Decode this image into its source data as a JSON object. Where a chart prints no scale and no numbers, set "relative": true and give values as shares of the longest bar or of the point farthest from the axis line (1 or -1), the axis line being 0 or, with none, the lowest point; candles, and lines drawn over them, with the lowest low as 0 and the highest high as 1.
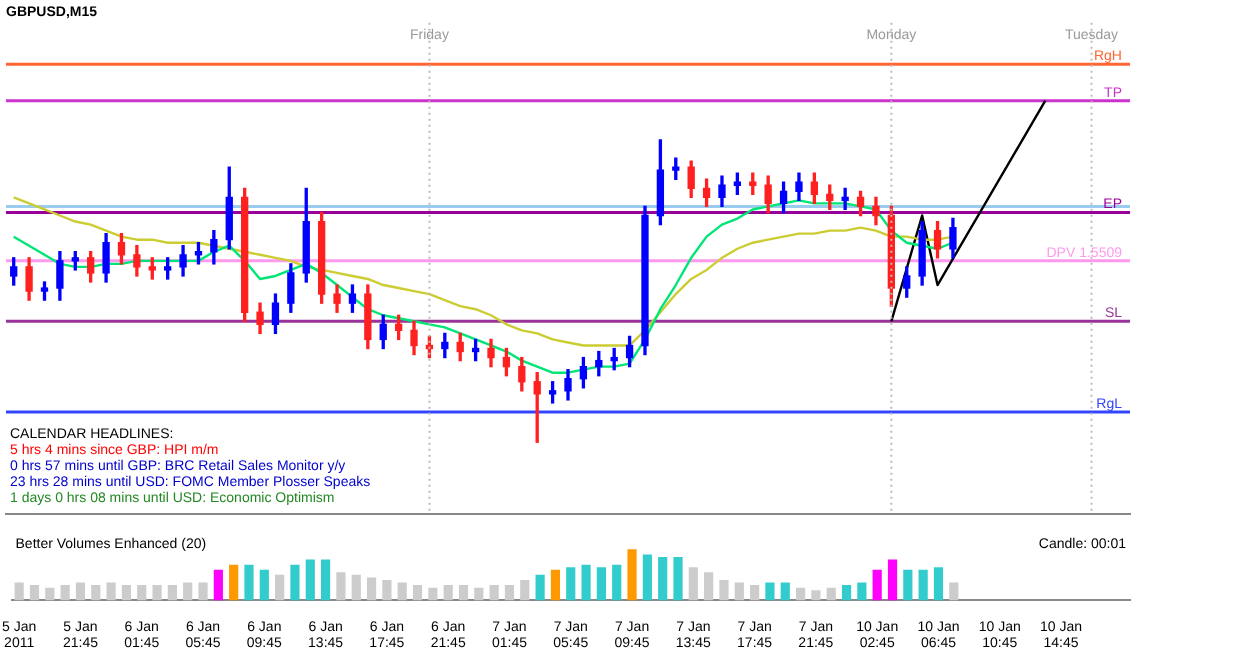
{
  "chart_data": [
    {
      "type": "candlestick",
      "title": "GBPUSD,M15",
      "relative": true,
      "grid": "x",
      "tick_labels": false,
      "marker": "none",
      "categories": [
        null,
        null,
        null,
        null,
        null,
        null,
        null,
        null,
        null,
        null,
        null,
        null,
        null,
        null,
        null,
        null,
        null,
        null,
        null,
        null,
        null,
        null,
        null,
        null,
        null,
        null,
        null,
        null,
        null,
        null,
        null,
        null,
        null,
        null,
        null,
        null,
        null,
        null,
        null,
        null,
        null,
        null,
        null,
        null,
        null,
        null,
        null,
        null,
        null,
        null,
        null,
        null,
        null,
        null,
        null,
        null,
        null,
        null,
        null,
        null,
        null,
        null,
        null,
        null,
        null,
        null,
        null,
        null,
        null,
        null,
        null,
        null,
        null
      ],
      "ohlc": [
        [
          0.55,
          0.61,
          0.52,
          0.58
        ],
        [
          0.58,
          0.61,
          0.47,
          0.5
        ],
        [
          0.5,
          0.53,
          0.47,
          0.51
        ],
        [
          0.51,
          0.63,
          0.47,
          0.6
        ],
        [
          0.6,
          0.63,
          0.57,
          0.61
        ],
        [
          0.61,
          0.63,
          0.53,
          0.56
        ],
        [
          0.56,
          0.69,
          0.53,
          0.66
        ],
        [
          0.66,
          0.69,
          0.59,
          0.62
        ],
        [
          0.62,
          0.65,
          0.55,
          0.58
        ],
        [
          0.58,
          0.61,
          0.54,
          0.57
        ],
        [
          0.57,
          0.61,
          0.54,
          0.58
        ],
        [
          0.58,
          0.65,
          0.55,
          0.62
        ],
        [
          0.62,
          0.66,
          0.59,
          0.63
        ],
        [
          0.63,
          0.7,
          0.59,
          0.67
        ],
        [
          0.67,
          0.91,
          0.64,
          0.81
        ],
        [
          0.81,
          0.84,
          0.4,
          0.43
        ],
        [
          0.43,
          0.46,
          0.36,
          0.39
        ],
        [
          0.39,
          0.49,
          0.36,
          0.46
        ],
        [
          0.46,
          0.59,
          0.43,
          0.56
        ],
        [
          0.56,
          0.84,
          0.53,
          0.73
        ],
        [
          0.73,
          0.76,
          0.46,
          0.49
        ],
        [
          0.49,
          0.52,
          0.43,
          0.46
        ],
        [
          0.46,
          0.52,
          0.43,
          0.49
        ],
        [
          0.49,
          0.52,
          0.31,
          0.34
        ],
        [
          0.34,
          0.42,
          0.31,
          0.39
        ],
        [
          0.39,
          0.42,
          0.34,
          0.37
        ],
        [
          0.37,
          0.4,
          0.29,
          0.32
        ],
        [
          0.32,
          0.35,
          0.28,
          0.31
        ],
        [
          0.31,
          0.36,
          0.28,
          0.33
        ],
        [
          0.33,
          0.36,
          0.27,
          0.3
        ],
        [
          0.3,
          0.34,
          0.27,
          0.31
        ],
        [
          0.31,
          0.34,
          0.25,
          0.28
        ],
        [
          0.28,
          0.31,
          0.22,
          0.25
        ],
        [
          0.25,
          0.28,
          0.17,
          0.2
        ],
        [
          0.2,
          0.23,
          0,
          0.16
        ],
        [
          0.16,
          0.2,
          0.13,
          0.17
        ],
        [
          0.17,
          0.24,
          0.14,
          0.21
        ],
        [
          0.21,
          0.28,
          0.18,
          0.25
        ],
        [
          0.25,
          0.3,
          0.22,
          0.27
        ],
        [
          0.27,
          0.31,
          0.24,
          0.28
        ],
        [
          0.28,
          0.35,
          0.25,
          0.32
        ],
        [
          0.32,
          0.78,
          0.29,
          0.75
        ],
        [
          0.75,
          1,
          0.72,
          0.9
        ],
        [
          0.9,
          0.94,
          0.87,
          0.91
        ],
        [
          0.91,
          0.93,
          0.81,
          0.84
        ],
        [
          0.84,
          0.87,
          0.78,
          0.81
        ],
        [
          0.81,
          0.88,
          0.78,
          0.85
        ],
        [
          0.85,
          0.89,
          0.82,
          0.86
        ],
        [
          0.86,
          0.89,
          0.82,
          0.85
        ],
        [
          0.85,
          0.88,
          0.76,
          0.79
        ],
        [
          0.79,
          0.86,
          0.76,
          0.83
        ],
        [
          0.83,
          0.89,
          0.8,
          0.86
        ],
        [
          0.86,
          0.89,
          0.79,
          0.82
        ],
        [
          0.82,
          0.85,
          0.77,
          0.8
        ],
        [
          0.8,
          0.84,
          0.77,
          0.81
        ],
        [
          0.81,
          0.83,
          0.75,
          0.78
        ],
        [
          0.78,
          0.81,
          0.72,
          0.75
        ],
        [
          0.75,
          0.78,
          0.45,
          0.51
        ],
        [
          0.51,
          0.58,
          0.48,
          0.55
        ],
        [
          0.55,
          0.73,
          0.52,
          0.7
        ],
        [
          0.7,
          0.73,
          0.61,
          0.64
        ],
        [
          0.64,
          0.74,
          0.61,
          0.71
        ],
        null,
        null,
        null,
        null,
        null,
        null,
        null,
        null,
        null,
        null,
        null
      ],
      "series": [
        {
          "type": "line",
          "color": "#00e676",
          "values": [
            0.68,
            0.65,
            0.62,
            0.59,
            0.58,
            0.58,
            0.59,
            0.59,
            0.6,
            0.6,
            0.6,
            0.6,
            0.6,
            0.63,
            0.65,
            0.6,
            0.54,
            0.55,
            0.57,
            0.59,
            0.56,
            0.52,
            0.48,
            0.44,
            0.42,
            0.41,
            0.4,
            0.39,
            0.38,
            0.36,
            0.34,
            0.32,
            0.3,
            0.27,
            0.25,
            0.23,
            0.23,
            0.24,
            0.25,
            0.25,
            0.26,
            0.34,
            0.44,
            0.52,
            0.61,
            0.68,
            0.72,
            0.74,
            0.77,
            0.78,
            0.79,
            0.8,
            0.79,
            0.79,
            0.79,
            0.78,
            0.77,
            0.7,
            0.66,
            0.65,
            0.64,
            0.66,
            null,
            null,
            null,
            null,
            null,
            null,
            null,
            null,
            null,
            null,
            null
          ]
        },
        {
          "type": "line",
          "color": "#cccc33",
          "values": [
            0.81,
            0.79,
            0.77,
            0.75,
            0.73,
            0.72,
            0.7,
            0.68,
            0.67,
            0.67,
            0.66,
            0.66,
            0.66,
            0.65,
            0.64,
            0.63,
            0.62,
            0.61,
            0.6,
            0.58,
            0.57,
            0.56,
            0.55,
            0.54,
            0.52,
            0.51,
            0.5,
            0.49,
            0.47,
            0.45,
            0.44,
            0.42,
            0.39,
            0.37,
            0.36,
            0.34,
            0.33,
            0.32,
            0.32,
            0.32,
            0.32,
            0.37,
            0.43,
            0.49,
            0.54,
            0.57,
            0.61,
            0.64,
            0.66,
            0.67,
            0.68,
            0.69,
            0.69,
            0.7,
            0.7,
            0.71,
            0.7,
            0.68,
            0.68,
            0.67,
            0.67,
            0.68,
            null,
            null,
            null,
            null,
            null,
            null,
            null,
            null,
            null,
            null,
            null
          ]
        },
        {
          "type": "line",
          "color": "#000000",
          "values": [
            null,
            null,
            null,
            null,
            null,
            null,
            null,
            null,
            null,
            null,
            null,
            null,
            null,
            null,
            null,
            null,
            null,
            null,
            null,
            null,
            null,
            null,
            null,
            null,
            null,
            null,
            null,
            null,
            null,
            null,
            null,
            null,
            null,
            null,
            null,
            null,
            null,
            null,
            null,
            null,
            null,
            null,
            null,
            null,
            null,
            null,
            null,
            null,
            null,
            null,
            null,
            null,
            null,
            null,
            null,
            null,
            null,
            0.4,
            null,
            0.75,
            0.52,
            null,
            null,
            null,
            null,
            null,
            null,
            1.13,
            null,
            null,
            null,
            null,
            null
          ]
        }
      ],
      "ref_lines": [
        {
          "axis": "y",
          "value": 1.25,
          "label": "RgH",
          "color": "#ff6633"
        },
        {
          "axis": "y",
          "value": 1.13,
          "label": "TP",
          "color": "#cc33cc"
        },
        {
          "axis": "y",
          "value": 0.78,
          "color": "#99ccee"
        },
        {
          "axis": "y",
          "value": 0.76,
          "label": "EP",
          "color": "#990099"
        },
        {
          "axis": "y",
          "value": 0.6,
          "label": "DPV 1.5509",
          "color": "#ff99ee"
        },
        {
          "axis": "y",
          "value": 0.4,
          "label": "SL",
          "color": "#993399"
        },
        {
          "axis": "y",
          "value": 0.1,
          "label": "RgL",
          "color": "#3344ff"
        }
      ],
      "annotations": [
        "Friday",
        "Monday",
        "Tuesday",
        "CALENDAR HEADLINES:",
        "5 hrs 4 mins since GBP: HPI m/m",
        "0 hrs 57 mins until GBP: BRC Retail Sales Monitor y/y",
        "23 hrs 28 mins until USD: FOMC Member Plosser Speaks",
        "1 days 0 hrs 08 mins until USD: Economic Optimism"
      ]
    },
    {
      "type": "bar",
      "title": "Better Volumes Enhanced (20)",
      "relative": true,
      "tick_labels": "x",
      "categories": [
        "5 Jan 2011",
        null,
        null,
        null,
        "5 Jan 21:45",
        null,
        null,
        null,
        "6 Jan 01:45",
        null,
        null,
        null,
        "6 Jan 05:45",
        null,
        null,
        null,
        "6 Jan 09:45",
        null,
        null,
        null,
        "6 Jan 13:45",
        null,
        null,
        null,
        "6 Jan 17:45",
        null,
        null,
        null,
        "6 Jan 21:45",
        null,
        null,
        null,
        "7 Jan 01:45",
        null,
        null,
        null,
        "7 Jan 05:45",
        null,
        null,
        null,
        "7 Jan 09:45",
        null,
        null,
        null,
        "7 Jan 13:45",
        null,
        null,
        null,
        "7 Jan 17:45",
        null,
        null,
        null,
        "7 Jan 21:45",
        null,
        null,
        null,
        "10 Jan 02:45",
        null,
        null,
        null,
        "10 Jan 06:45",
        null,
        null,
        null,
        "10 Jan 10:45",
        null,
        null,
        null,
        "10 Jan 14:45",
        null,
        null,
        null,
        null
      ],
      "values": [
        0.35,
        0.3,
        0.25,
        0.3,
        0.35,
        0.3,
        0.35,
        0.3,
        0.3,
        0.3,
        0.3,
        0.35,
        0.35,
        0.6,
        0.7,
        0.7,
        0.6,
        0.5,
        0.7,
        0.8,
        0.8,
        0.55,
        0.5,
        0.45,
        0.4,
        0.35,
        0.3,
        0.25,
        0.3,
        0.3,
        0.25,
        0.3,
        0.3,
        0.4,
        0.5,
        0.6,
        0.65,
        0.7,
        0.65,
        0.7,
        1,
        0.9,
        0.85,
        0.85,
        0.65,
        0.55,
        0.4,
        0.35,
        0.3,
        0.35,
        0.35,
        0.25,
        0.2,
        0.25,
        0.3,
        0.35,
        0.6,
        0.8,
        0.6,
        0.6,
        0.65,
        0.35,
        null,
        null,
        null,
        null,
        null,
        null,
        null,
        null,
        null,
        null,
        null
      ],
      "colors": [
        "#cccccc",
        "#cccccc",
        "#cccccc",
        "#cccccc",
        "#cccccc",
        "#cccccc",
        "#cccccc",
        "#cccccc",
        "#cccccc",
        "#cccccc",
        "#cccccc",
        "#cccccc",
        "#cccccc",
        "#ff00ff",
        "#ff9900",
        "#33cccc",
        "#33cccc",
        "#cccccc",
        "#33cccc",
        "#33cccc",
        "#33cccc",
        "#cccccc",
        "#cccccc",
        "#cccccc",
        "#cccccc",
        "#cccccc",
        "#cccccc",
        "#cccccc",
        "#cccccc",
        "#cccccc",
        "#cccccc",
        "#cccccc",
        "#cccccc",
        "#cccccc",
        "#33cccc",
        "#ff9900",
        "#33cccc",
        "#33cccc",
        "#33cccc",
        "#33cccc",
        "#ff9900",
        "#33cccc",
        "#33cccc",
        "#33cccc",
        "#cccccc",
        "#cccccc",
        "#cccccc",
        "#cccccc",
        "#cccccc",
        "#33cccc",
        "#33cccc",
        "#cccccc",
        "#cccccc",
        "#cccccc",
        "#33cccc",
        "#33cccc",
        "#ff00ff",
        "#ff00ff",
        "#33cccc",
        "#33cccc",
        "#33cccc",
        "#cccccc",
        "#cccccc",
        "#cccccc",
        "#cccccc",
        "#cccccc",
        "#cccccc",
        "#cccccc",
        "#cccccc",
        "#cccccc",
        "#cccccc",
        "#cccccc",
        "#cccccc"
      ],
      "annotations": [
        "Candle: 00:01"
      ]
    }
  ]
}
